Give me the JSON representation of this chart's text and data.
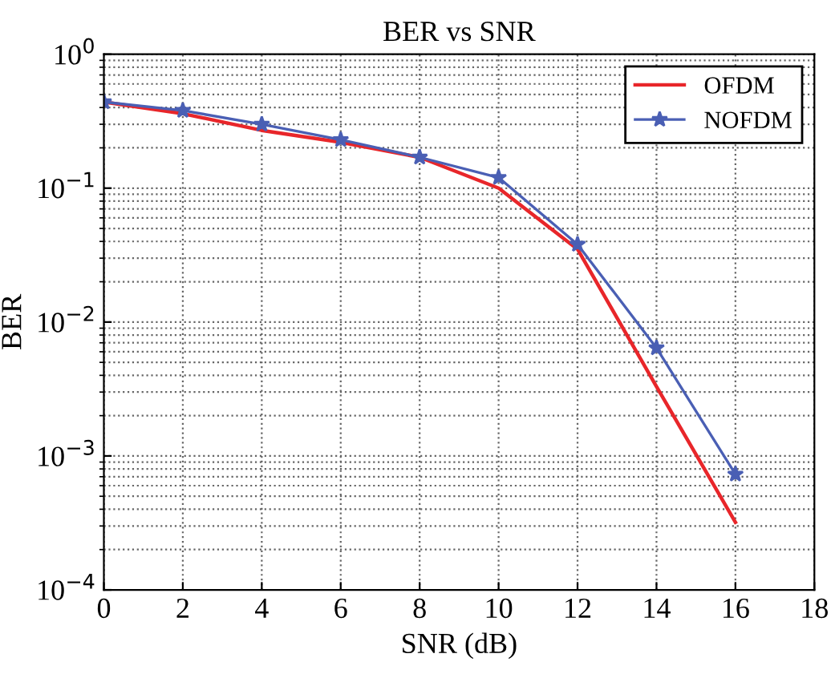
{
  "chart_data": {
    "type": "line",
    "title": "BER vs SNR",
    "xlabel": "SNR (dB)",
    "ylabel": "BER",
    "x": [
      0,
      2,
      4,
      6,
      8,
      10,
      12,
      14,
      16
    ],
    "series": [
      {
        "name": "OFDM",
        "color": "#e8262a",
        "marker": "none",
        "values": [
          0.44,
          0.36,
          0.27,
          0.22,
          0.17,
          0.1,
          0.035,
          0.0033,
          0.00032
        ]
      },
      {
        "name": "NOFDM",
        "color": "#4a5fb4",
        "marker": "star",
        "values": [
          0.44,
          0.38,
          0.3,
          0.23,
          0.17,
          0.12,
          0.038,
          0.0064,
          0.00073
        ]
      }
    ],
    "log": "y",
    "xlim": [
      0,
      18
    ],
    "xticks": [
      0,
      2,
      4,
      6,
      8,
      10,
      12,
      14,
      16,
      18
    ],
    "ylim": [
      0.0001,
      1
    ],
    "yticks": [
      {
        "value": 0.0001,
        "label": "10$^{−4}$"
      },
      {
        "value": 0.001,
        "label": "10$^{−3}$"
      },
      {
        "value": 0.01,
        "label": "10$^{−2}$"
      },
      {
        "value": 0.1,
        "label": "10$^{−1}$"
      },
      {
        "value": 1,
        "label": "10$^{0}$"
      }
    ],
    "grid": true,
    "legend": "top right",
    "line_style": "solid"
  }
}
